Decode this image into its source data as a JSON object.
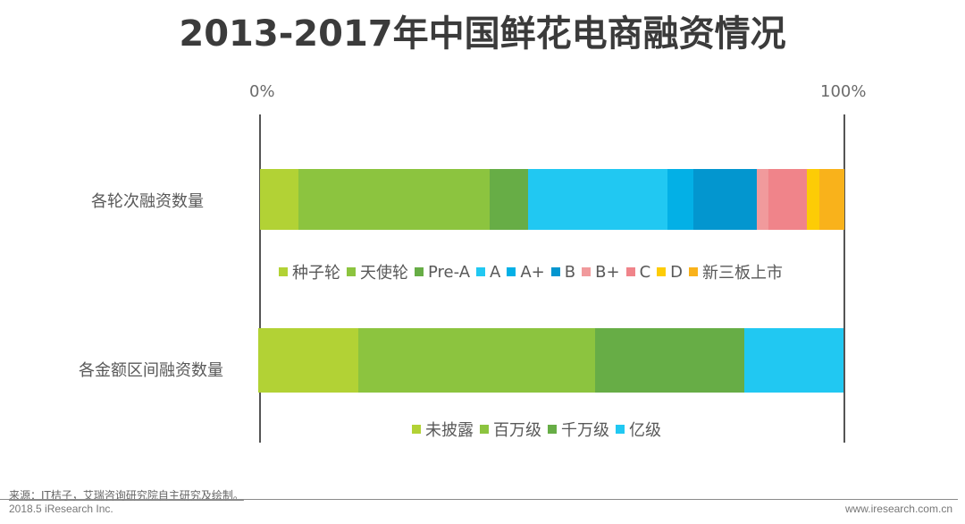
{
  "title": "2013-2017年中国鲜花电商融资情况",
  "chart_data": [
    {
      "type": "bar",
      "orientation": "horizontal-stacked-100",
      "title": "2013-2017年中国鲜花电商融资情况",
      "category": "各轮次融资数量",
      "xlim": [
        0,
        100
      ],
      "x_ticks": [
        "0%",
        "100%"
      ],
      "series": [
        {
          "name": "种子轮",
          "value": 6.6,
          "color": "#b2d235"
        },
        {
          "name": "天使轮",
          "value": 32.7,
          "color": "#8cc43f"
        },
        {
          "name": "Pre-A",
          "value": 6.5,
          "color": "#67ad46"
        },
        {
          "name": "A",
          "value": 23.9,
          "color": "#21c8f2"
        },
        {
          "name": "A+",
          "value": 4.4,
          "color": "#03b0e6"
        },
        {
          "name": "B",
          "value": 10.8,
          "color": "#0396cf"
        },
        {
          "name": "B+",
          "value": 2.1,
          "color": "#f19a9c"
        },
        {
          "name": "C",
          "value": 6.5,
          "color": "#f0848a"
        },
        {
          "name": "D",
          "value": 2.2,
          "color": "#fdcc06"
        },
        {
          "name": "新三板上市",
          "value": 4.2,
          "color": "#f9b21b"
        }
      ]
    },
    {
      "type": "bar",
      "orientation": "horizontal-stacked-100",
      "category": "各金额区间融资数量",
      "xlim": [
        0,
        100
      ],
      "series": [
        {
          "name": "未披露",
          "value": 17.1,
          "color": "#b2d235"
        },
        {
          "name": "百万级",
          "value": 40.5,
          "color": "#8cc43f"
        },
        {
          "name": "千万级",
          "value": 25.4,
          "color": "#67ad46"
        },
        {
          "name": "亿级",
          "value": 17.0,
          "color": "#21c8f2"
        }
      ]
    }
  ],
  "axis": {
    "tick_0": "0%",
    "tick_100": "100%"
  },
  "categories": {
    "rounds": "各轮次融资数量",
    "amounts": "各金额区间融资数量"
  },
  "footer": {
    "source": "来源：IT桔子，艾瑞咨询研究院自主研究及绘制。",
    "copyright": "2018.5 iResearch Inc.",
    "website": "www.iresearch.com.cn"
  }
}
